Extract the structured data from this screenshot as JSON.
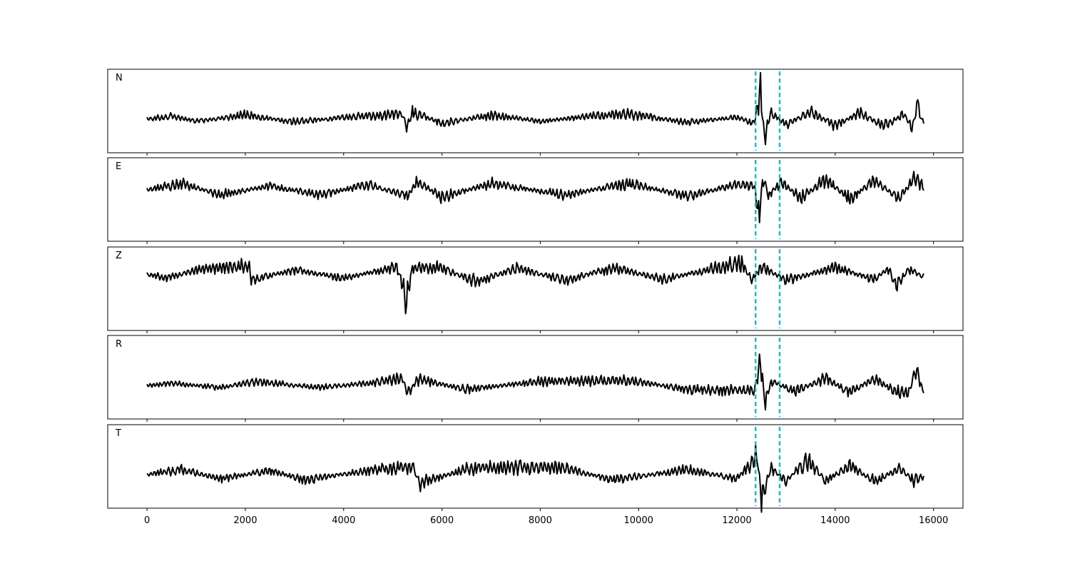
{
  "chart_data": {
    "type": "line",
    "xlim": [
      -800,
      16600
    ],
    "x_ticks": [
      0,
      2000,
      4000,
      6000,
      8000,
      10000,
      12000,
      14000,
      16000
    ],
    "x_tick_labels": [
      "0",
      "2000",
      "4000",
      "6000",
      "8000",
      "10000",
      "12000",
      "14000",
      "16000"
    ],
    "xlabel": "",
    "ylabel": "",
    "grid": false,
    "n_samples": 15800,
    "markers": {
      "color": "#17becf",
      "x": [
        12380,
        12870
      ]
    },
    "panels": [
      {
        "label": "N",
        "series": [
          {
            "x": 0,
            "y": 0.0
          },
          {
            "x": 500,
            "y": 0.15
          },
          {
            "x": 1000,
            "y": -0.1
          },
          {
            "x": 2000,
            "y": 0.2
          },
          {
            "x": 3000,
            "y": -0.15
          },
          {
            "x": 4000,
            "y": 0.1
          },
          {
            "x": 5200,
            "y": 0.25
          },
          {
            "x": 5300,
            "y": -0.45
          },
          {
            "x": 5400,
            "y": 0.35
          },
          {
            "x": 6000,
            "y": -0.2
          },
          {
            "x": 7000,
            "y": 0.2
          },
          {
            "x": 8000,
            "y": -0.1
          },
          {
            "x": 9000,
            "y": 0.15
          },
          {
            "x": 9800,
            "y": 0.25
          },
          {
            "x": 11000,
            "y": -0.15
          },
          {
            "x": 12000,
            "y": 0.1
          },
          {
            "x": 12350,
            "y": -0.2
          },
          {
            "x": 12480,
            "y": 1.25
          },
          {
            "x": 12560,
            "y": -0.85
          },
          {
            "x": 12700,
            "y": 0.3
          },
          {
            "x": 13000,
            "y": -0.25
          },
          {
            "x": 13500,
            "y": 0.35
          },
          {
            "x": 14000,
            "y": -0.3
          },
          {
            "x": 14500,
            "y": 0.3
          },
          {
            "x": 15000,
            "y": -0.35
          },
          {
            "x": 15400,
            "y": 0.25
          },
          {
            "x": 15570,
            "y": -0.45
          },
          {
            "x": 15660,
            "y": 0.75
          },
          {
            "x": 15780,
            "y": -0.15
          }
        ]
      },
      {
        "label": "E",
        "series": [
          {
            "x": 0,
            "y": 0.0
          },
          {
            "x": 700,
            "y": 0.3
          },
          {
            "x": 1500,
            "y": -0.25
          },
          {
            "x": 2500,
            "y": 0.2
          },
          {
            "x": 3500,
            "y": -0.25
          },
          {
            "x": 4500,
            "y": 0.25
          },
          {
            "x": 5300,
            "y": -0.3
          },
          {
            "x": 5500,
            "y": 0.4
          },
          {
            "x": 6000,
            "y": -0.35
          },
          {
            "x": 7000,
            "y": 0.3
          },
          {
            "x": 8500,
            "y": -0.25
          },
          {
            "x": 9800,
            "y": 0.3
          },
          {
            "x": 11000,
            "y": -0.3
          },
          {
            "x": 12000,
            "y": 0.25
          },
          {
            "x": 12350,
            "y": 0.2
          },
          {
            "x": 12450,
            "y": -1.2
          },
          {
            "x": 12530,
            "y": 0.6
          },
          {
            "x": 12650,
            "y": -0.3
          },
          {
            "x": 12900,
            "y": 0.4
          },
          {
            "x": 13300,
            "y": -0.4
          },
          {
            "x": 13800,
            "y": 0.5
          },
          {
            "x": 14300,
            "y": -0.45
          },
          {
            "x": 14800,
            "y": 0.45
          },
          {
            "x": 15300,
            "y": -0.4
          },
          {
            "x": 15600,
            "y": 0.5
          },
          {
            "x": 15780,
            "y": 0.2
          }
        ]
      },
      {
        "label": "Z",
        "series": [
          {
            "x": 0,
            "y": 0.0
          },
          {
            "x": 400,
            "y": -0.2
          },
          {
            "x": 1000,
            "y": 0.2
          },
          {
            "x": 2080,
            "y": 0.4
          },
          {
            "x": 2120,
            "y": -0.3
          },
          {
            "x": 3000,
            "y": 0.2
          },
          {
            "x": 4000,
            "y": -0.2
          },
          {
            "x": 5100,
            "y": 0.35
          },
          {
            "x": 5270,
            "y": -1.25
          },
          {
            "x": 5400,
            "y": 0.3
          },
          {
            "x": 6000,
            "y": 0.3
          },
          {
            "x": 6700,
            "y": -0.4
          },
          {
            "x": 7500,
            "y": 0.3
          },
          {
            "x": 8500,
            "y": -0.3
          },
          {
            "x": 9500,
            "y": 0.3
          },
          {
            "x": 10500,
            "y": -0.25
          },
          {
            "x": 11500,
            "y": 0.25
          },
          {
            "x": 12080,
            "y": 0.55
          },
          {
            "x": 12300,
            "y": -0.3
          },
          {
            "x": 12500,
            "y": 0.4
          },
          {
            "x": 13000,
            "y": -0.3
          },
          {
            "x": 14000,
            "y": 0.3
          },
          {
            "x": 14800,
            "y": -0.25
          },
          {
            "x": 15100,
            "y": 0.3
          },
          {
            "x": 15230,
            "y": -0.65
          },
          {
            "x": 15500,
            "y": 0.25
          },
          {
            "x": 15780,
            "y": -0.1
          }
        ]
      },
      {
        "label": "R",
        "series": [
          {
            "x": 0,
            "y": 0.0
          },
          {
            "x": 500,
            "y": 0.1
          },
          {
            "x": 1500,
            "y": -0.1
          },
          {
            "x": 2200,
            "y": 0.2
          },
          {
            "x": 3500,
            "y": -0.1
          },
          {
            "x": 4500,
            "y": 0.1
          },
          {
            "x": 5200,
            "y": 0.35
          },
          {
            "x": 5300,
            "y": -0.4
          },
          {
            "x": 5500,
            "y": 0.3
          },
          {
            "x": 6500,
            "y": -0.2
          },
          {
            "x": 8000,
            "y": 0.2
          },
          {
            "x": 9800,
            "y": 0.25
          },
          {
            "x": 11000,
            "y": -0.2
          },
          {
            "x": 12350,
            "y": -0.25
          },
          {
            "x": 12480,
            "y": 1.2
          },
          {
            "x": 12570,
            "y": -0.8
          },
          {
            "x": 12700,
            "y": 0.2
          },
          {
            "x": 13200,
            "y": -0.3
          },
          {
            "x": 13800,
            "y": 0.35
          },
          {
            "x": 14300,
            "y": -0.35
          },
          {
            "x": 14800,
            "y": 0.35
          },
          {
            "x": 15200,
            "y": -0.3
          },
          {
            "x": 15500,
            "y": -0.35
          },
          {
            "x": 15650,
            "y": 0.75
          },
          {
            "x": 15780,
            "y": -0.2
          }
        ]
      },
      {
        "label": "T",
        "series": [
          {
            "x": 0,
            "y": 0.0
          },
          {
            "x": 700,
            "y": 0.25
          },
          {
            "x": 1500,
            "y": -0.2
          },
          {
            "x": 2500,
            "y": 0.2
          },
          {
            "x": 3200,
            "y": -0.25
          },
          {
            "x": 4500,
            "y": 0.2
          },
          {
            "x": 5400,
            "y": 0.4
          },
          {
            "x": 5550,
            "y": -0.45
          },
          {
            "x": 6500,
            "y": 0.3
          },
          {
            "x": 7300,
            "y": 0.35
          },
          {
            "x": 8400,
            "y": 0.35
          },
          {
            "x": 9500,
            "y": -0.25
          },
          {
            "x": 11000,
            "y": 0.25
          },
          {
            "x": 12000,
            "y": -0.2
          },
          {
            "x": 12420,
            "y": 0.9
          },
          {
            "x": 12500,
            "y": -1.05
          },
          {
            "x": 12700,
            "y": 0.3
          },
          {
            "x": 13000,
            "y": -0.3
          },
          {
            "x": 13450,
            "y": 0.75
          },
          {
            "x": 13800,
            "y": -0.3
          },
          {
            "x": 14300,
            "y": 0.45
          },
          {
            "x": 14800,
            "y": -0.35
          },
          {
            "x": 15300,
            "y": 0.3
          },
          {
            "x": 15600,
            "y": -0.3
          },
          {
            "x": 15780,
            "y": -0.1
          }
        ]
      }
    ]
  }
}
